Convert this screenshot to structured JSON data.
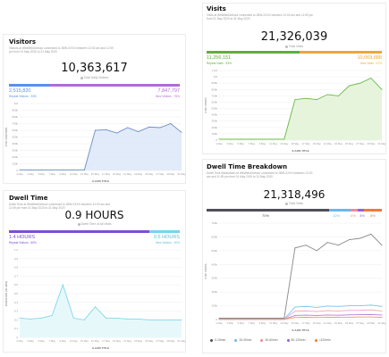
{
  "visitors": {
    "title": "Visitors",
    "subtitle": "Visitors at Westfield/Arbour connected to JBW-XXXX between 12:00 am and 11:59 pm from 01 May 2020 to 31 May 2020",
    "total": "10,363,617",
    "total_label": "Total Daily Visitors",
    "left_value": "2,515,820",
    "left_label": "Repeat Visitors · 24%",
    "right_value": "7,847,797",
    "right_label": "New Visitors · 76%",
    "xlabel": "X-AXIS TITLE",
    "ylabel": "# OF VISITORS",
    "colors": {
      "left": "#5b8def",
      "right": "#b26ad6"
    }
  },
  "visits": {
    "title": "Visits",
    "subtitle": "Visits at Westfield/Arbour connected to JBW-XXXX between 12:00 am and 11:59 pm from 01 May 2020 to 31 May 2020",
    "total": "21,326,039",
    "total_label": "Total Visits",
    "left_value": "11,256,151",
    "left_label": "Repeat Visits · 53%",
    "right_value": "10,069,888",
    "right_label": "New Visits · 47%",
    "xlabel": "X-AXIS TITLE",
    "ylabel": "# OF VISITS",
    "colors": {
      "left": "#5cb135",
      "right": "#f2a43a"
    }
  },
  "dwell": {
    "title": "Dwell Time",
    "subtitle": "Dwell Time at Westfield/Arbour connected to JBW-XXXX between 12:00 am and 11:59 pm from 01 May 2020 to 31 May 2020",
    "total": "0.9 HOURS",
    "total_label": "Dwell Time of All Visits",
    "left_value": "1.4 HOURS",
    "left_label": "Repeat Visitors · 60%",
    "right_value": "0.5 HOURS",
    "right_label": "New Visitors · 40%",
    "xlabel": "X-AXIS TITLE",
    "ylabel": "DURATION (IN HRS)",
    "colors": {
      "left": "#7c4ed8",
      "right": "#72d6ea"
    }
  },
  "breakdown": {
    "title": "Dwell Time Breakdown",
    "subtitle": "Dwell Time Breakdown at Westfield/Arbour connected to JBW-XXXX between 12:00 am and 11:59 pm from 01 May 2020 to 31 May 2020",
    "total": "21,318,496",
    "total_label": "Total Visits",
    "seg_labels": [
      "70%",
      "12%",
      "4%",
      "3%",
      "8%"
    ],
    "seg_colors": [
      "#4f4f59",
      "#6fb6e8",
      "#f08aa0",
      "#9c5fd4",
      "#f07a3c"
    ],
    "xlabel": "X-AXIS TITLE",
    "ylabel": "# OF VISITS",
    "legend": [
      "0-15min",
      "15-30min",
      "30-60min",
      "60-120min",
      ">120min"
    ]
  },
  "chart_data": [
    {
      "type": "area",
      "title": "Visitors",
      "x": [
        "1 May",
        "3 May",
        "5 May",
        "7 May",
        "9 May",
        "11 May",
        "13 May",
        "15 May",
        "17 May",
        "19 May",
        "21 May",
        "23 May",
        "25 May",
        "27 May",
        "29 May",
        "31 May"
      ],
      "ylim": [
        0,
        1000000
      ],
      "yticks": [
        "0",
        "100k",
        "200k",
        "300k",
        "400k",
        "500k",
        "600k",
        "700k",
        "800k",
        "900k",
        "1M"
      ],
      "series": [
        {
          "values": [
            10000,
            10000,
            10000,
            10000,
            10000,
            10000,
            10000,
            600000,
            610000,
            560000,
            640000,
            580000,
            650000,
            640000,
            700000,
            570000
          ]
        }
      ]
    },
    {
      "type": "area",
      "title": "Visits",
      "x": [
        "1 May",
        "3 May",
        "5 May",
        "7 May",
        "9 May",
        "11 May",
        "13 May",
        "15 May",
        "17 May",
        "19 May",
        "21 May",
        "23 May",
        "25 May",
        "27 May",
        "29 May",
        "31 May"
      ],
      "ylim": [
        0,
        1100000
      ],
      "yticks": [
        "0",
        "100k",
        "200k",
        "300k",
        "400k",
        "500k",
        "600k",
        "700k",
        "800k",
        "900k",
        "1M",
        "1.1M"
      ],
      "series": [
        {
          "values": [
            15000,
            15000,
            15000,
            15000,
            15000,
            15000,
            15000,
            640000,
            660000,
            640000,
            720000,
            700000,
            860000,
            900000,
            980000,
            800000
          ]
        }
      ]
    },
    {
      "type": "area",
      "title": "Dwell Time",
      "x": [
        "1 May",
        "3 May",
        "5 May",
        "7 May",
        "9 May",
        "11 May",
        "13 May",
        "15 May",
        "17 May",
        "19 May",
        "21 May",
        "23 May",
        "25 May",
        "27 May",
        "29 May",
        "31 May"
      ],
      "ylim": [
        0,
        1.0
      ],
      "yticks": [
        "0",
        "0.1",
        "0.2",
        "0.3",
        "0.4",
        "0.5",
        "0.6",
        "0.7",
        "0.8",
        "0.9",
        "1.0"
      ],
      "series": [
        {
          "values": [
            0.22,
            0.21,
            0.22,
            0.25,
            0.6,
            0.22,
            0.2,
            0.35,
            0.22,
            0.22,
            0.21,
            0.21,
            0.2,
            0.2,
            0.2,
            0.2
          ]
        }
      ]
    },
    {
      "type": "line",
      "title": "Dwell Time Breakdown",
      "x": [
        "1 May",
        "3 May",
        "5 May",
        "7 May",
        "9 May",
        "11 May",
        "13 May",
        "15 May",
        "17 May",
        "19 May",
        "21 May",
        "23 May",
        "25 May",
        "27 May",
        "29 May",
        "31 May"
      ],
      "ylim": [
        0,
        700000
      ],
      "yticks": [
        "0",
        "100k",
        "200k",
        "300k",
        "400k",
        "500k",
        "600k",
        "700k"
      ],
      "series": [
        {
          "name": "0-15min",
          "values": [
            10000,
            10000,
            10000,
            10000,
            10000,
            10000,
            10000,
            520000,
            540000,
            500000,
            560000,
            540000,
            580000,
            590000,
            620000,
            540000
          ]
        },
        {
          "name": "15-30min",
          "values": [
            3000,
            3000,
            3000,
            3000,
            3000,
            3000,
            3000,
            90000,
            95000,
            88000,
            98000,
            95000,
            100000,
            100000,
            105000,
            95000
          ]
        },
        {
          "name": "30-60min",
          "values": [
            2000,
            2000,
            2000,
            2000,
            2000,
            2000,
            2000,
            60000,
            62000,
            58000,
            64000,
            62000,
            66000,
            67000,
            70000,
            62000
          ]
        },
        {
          "name": "60-120min",
          "values": [
            1000,
            1000,
            1000,
            1000,
            1000,
            1000,
            1000,
            30000,
            32000,
            30000,
            33000,
            31000,
            34000,
            35000,
            36000,
            33000
          ]
        },
        {
          "name": ">120min",
          "values": [
            1000,
            1000,
            1000,
            1000,
            1000,
            1000,
            1000,
            15000,
            16000,
            15000,
            17000,
            16000,
            17000,
            18000,
            18000,
            16000
          ]
        }
      ]
    }
  ]
}
